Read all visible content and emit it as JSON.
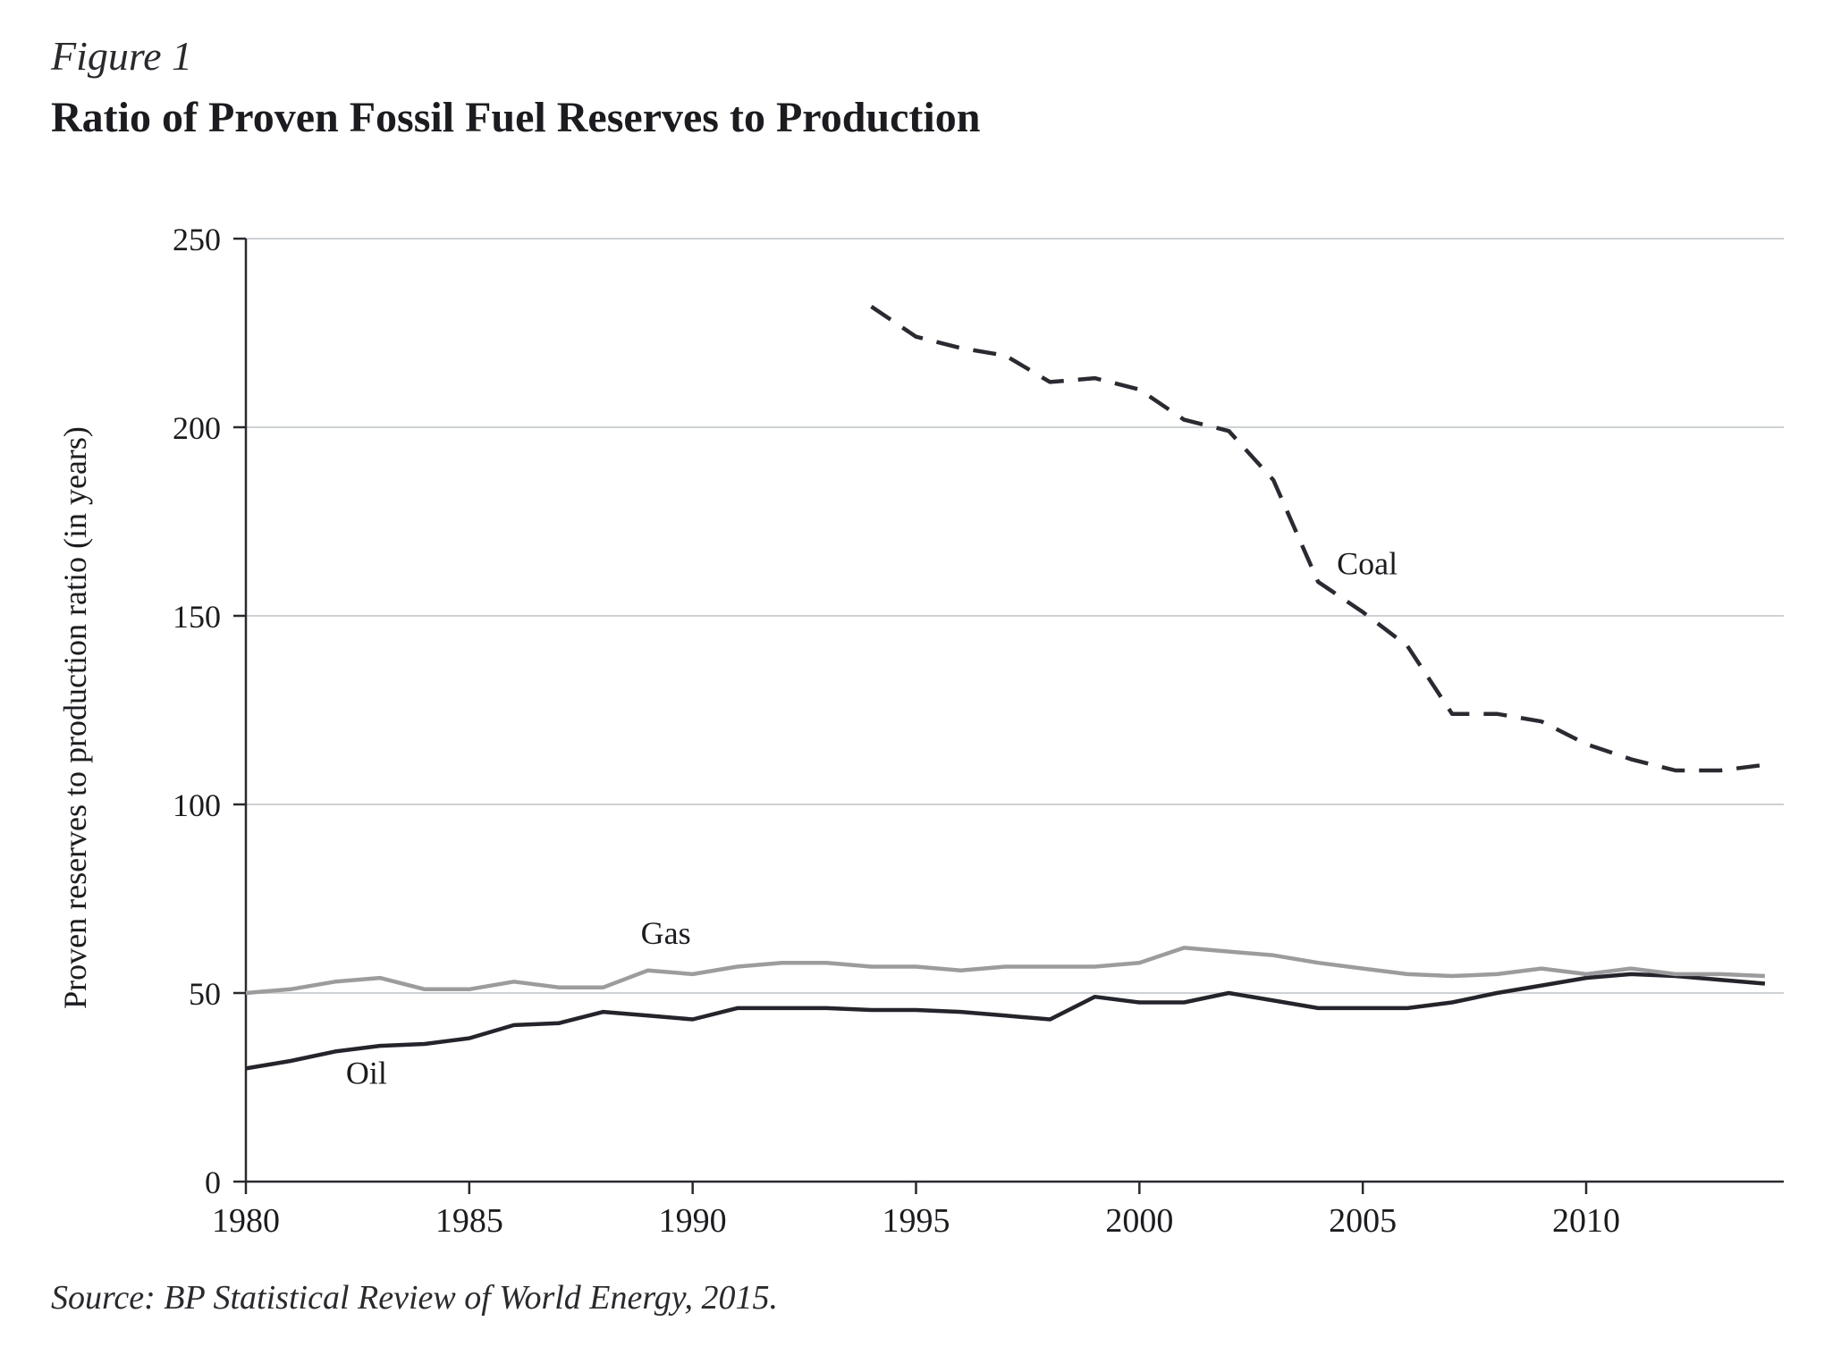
{
  "figure_label": "Figure 1",
  "title": "Ratio of Proven Fossil Fuel Reserves to Production",
  "source": "Source: BP Statistical Review of World Energy, 2015.",
  "colors": {
    "oil": "#24242c",
    "gas": "#9c9c9e",
    "coal": "#2a2a32",
    "grid": "#cdd3d4",
    "axis": "#2a2a2e"
  },
  "chart_data": {
    "type": "line",
    "xlabel": "",
    "ylabel": "Proven reserves to production ratio (in years)",
    "xlim": [
      1980,
      2014
    ],
    "ylim": [
      0,
      250
    ],
    "xticks": [
      1980,
      1985,
      1990,
      1995,
      2000,
      2005,
      2010
    ],
    "yticks": [
      0,
      50,
      100,
      150,
      200,
      250
    ],
    "grid": "horizontal",
    "series": [
      {
        "name": "Oil",
        "style": "solid",
        "x": [
          1980,
          1981,
          1982,
          1983,
          1984,
          1985,
          1986,
          1987,
          1988,
          1989,
          1990,
          1991,
          1992,
          1993,
          1994,
          1995,
          1996,
          1997,
          1998,
          1999,
          2000,
          2001,
          2002,
          2003,
          2004,
          2005,
          2006,
          2007,
          2008,
          2009,
          2010,
          2011,
          2012,
          2013,
          2014
        ],
        "values": [
          30,
          32,
          34.5,
          36,
          36.5,
          38,
          41.5,
          42,
          45,
          44,
          43,
          46,
          46,
          46,
          45.5,
          45.5,
          45,
          44,
          43,
          49,
          47.5,
          47.5,
          50,
          48,
          46,
          46,
          46,
          47.5,
          50,
          52,
          54,
          55,
          54.5,
          53.5,
          52.5
        ]
      },
      {
        "name": "Gas",
        "style": "solid",
        "x": [
          1980,
          1981,
          1982,
          1983,
          1984,
          1985,
          1986,
          1987,
          1988,
          1989,
          1990,
          1991,
          1992,
          1993,
          1994,
          1995,
          1996,
          1997,
          1998,
          1999,
          2000,
          2001,
          2002,
          2003,
          2004,
          2005,
          2006,
          2007,
          2008,
          2009,
          2010,
          2011,
          2012,
          2013,
          2014
        ],
        "values": [
          50,
          51,
          53,
          54,
          51,
          51,
          53,
          51.5,
          51.5,
          56,
          55,
          57,
          58,
          58,
          57,
          57,
          56,
          57,
          57,
          57,
          58,
          62,
          61,
          60,
          58,
          56.5,
          55,
          54.5,
          55,
          56.5,
          55,
          56.5,
          55,
          55,
          54.5
        ]
      },
      {
        "name": "Coal",
        "style": "dashed",
        "x": [
          1994,
          1995,
          1996,
          1997,
          1998,
          1999,
          2000,
          2001,
          2002,
          2003,
          2004,
          2005,
          2006,
          2007,
          2008,
          2009,
          2010,
          2011,
          2012,
          2013,
          2014
        ],
        "values": [
          232,
          224,
          221,
          219,
          212,
          213,
          210,
          202,
          199,
          186,
          159,
          151,
          142,
          124,
          124,
          122,
          116,
          112,
          109,
          109,
          110.5
        ]
      }
    ]
  }
}
